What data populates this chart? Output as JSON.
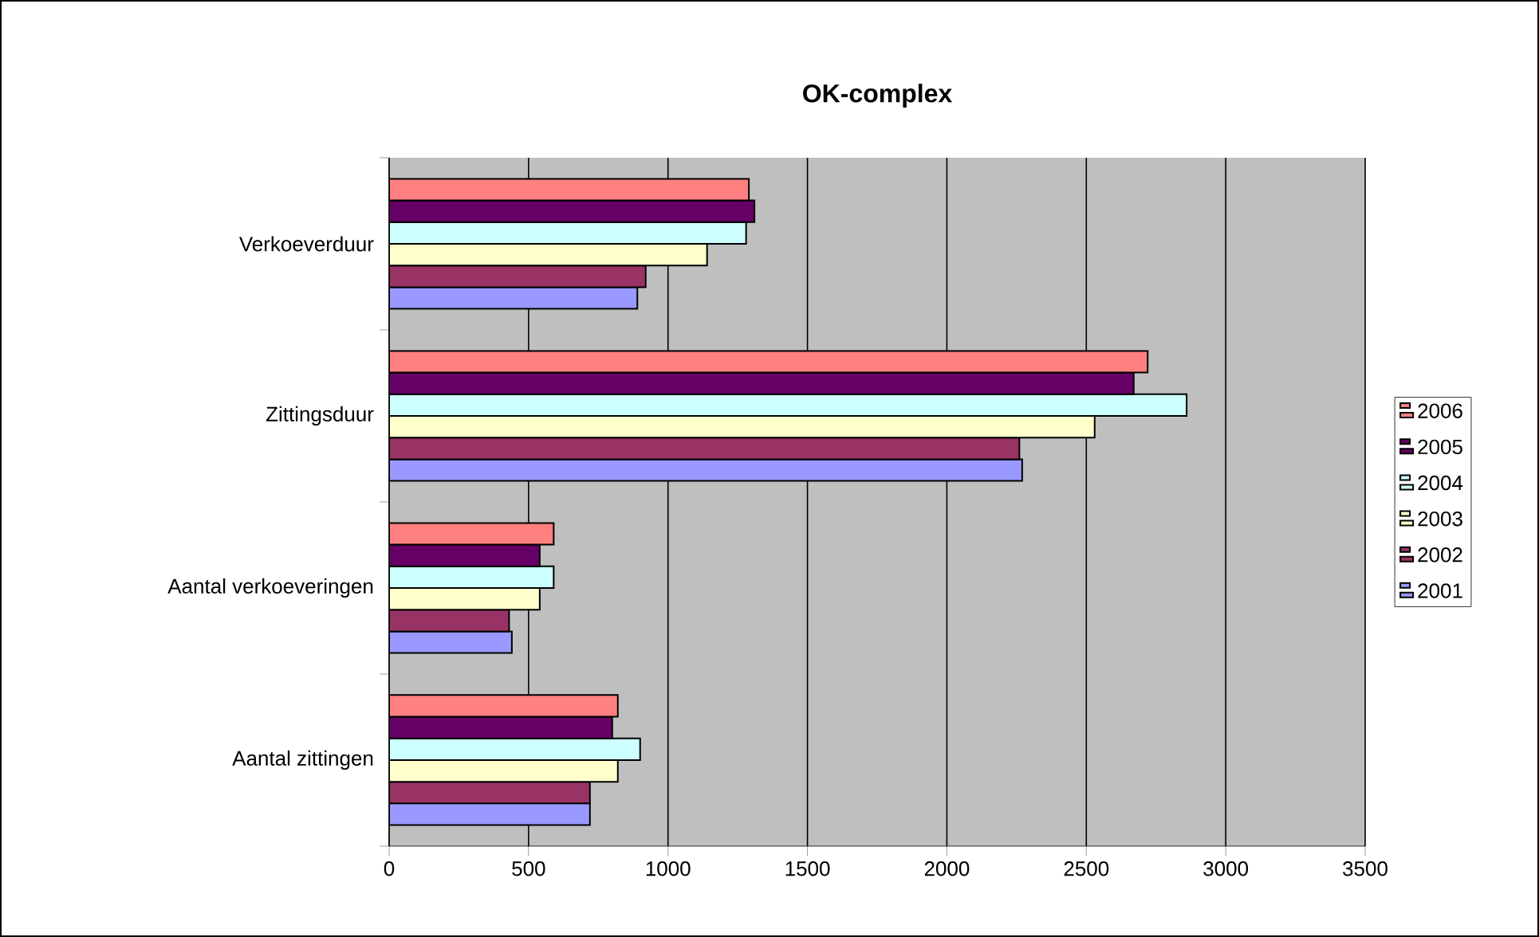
{
  "chart_data": {
    "type": "bar",
    "orientation": "horizontal",
    "title": "OK-complex",
    "categories": [
      "Verkoeverduur",
      "Zittingsduur",
      "Aantal verkoeveringen",
      "Aantal zittingen"
    ],
    "series": [
      {
        "name": "2001",
        "color": "#9999ff",
        "values": [
          890,
          2270,
          440,
          720
        ]
      },
      {
        "name": "2002",
        "color": "#993366",
        "values": [
          920,
          2260,
          430,
          720
        ]
      },
      {
        "name": "2003",
        "color": "#ffffcc",
        "values": [
          1140,
          2530,
          540,
          820
        ]
      },
      {
        "name": "2004",
        "color": "#ccffff",
        "values": [
          1280,
          2860,
          590,
          900
        ]
      },
      {
        "name": "2005",
        "color": "#660066",
        "values": [
          1310,
          2670,
          540,
          800
        ]
      },
      {
        "name": "2006",
        "color": "#ff8080",
        "values": [
          1290,
          2720,
          590,
          820
        ]
      }
    ],
    "xlim": [
      0,
      3500
    ],
    "xticks": [
      0,
      500,
      1000,
      1500,
      2000,
      2500,
      3000,
      3500
    ],
    "grid": "x",
    "legend": "right"
  }
}
